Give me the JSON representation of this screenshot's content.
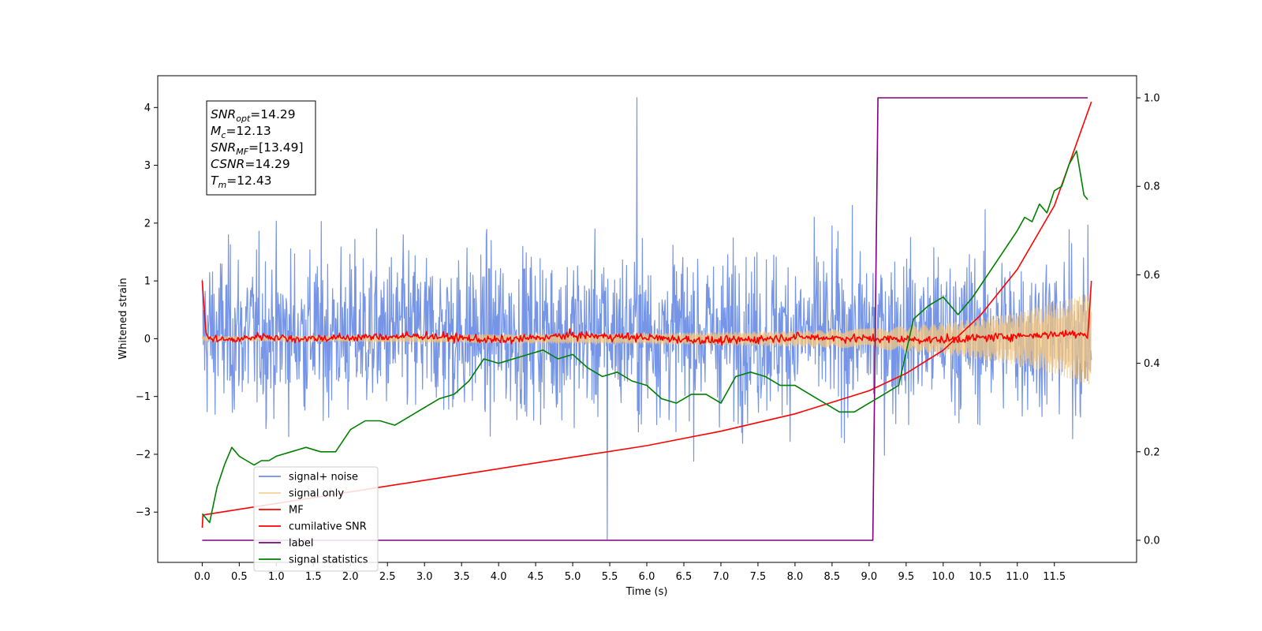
{
  "chart_data": {
    "type": "line",
    "xlabel": "Time (s)",
    "ylabel": "Whitened strain",
    "xlim": [
      -0.6,
      12.61
    ],
    "ylim": [
      -3.87,
      4.55
    ],
    "ylim_right": [
      -0.05,
      1.05
    ],
    "x_ticks": [
      0.0,
      0.5,
      1.0,
      1.5,
      2.0,
      2.5,
      3.0,
      3.5,
      4.0,
      4.5,
      5.0,
      5.5,
      6.0,
      6.5,
      7.0,
      7.5,
      8.0,
      8.5,
      9.0,
      9.5,
      10.0,
      10.5,
      11.0,
      11.5
    ],
    "x_tick_labels": [
      "0.0",
      "0.5",
      "1.0",
      "1.5",
      "2.0",
      "2.5",
      "3.0",
      "3.5",
      "4.0",
      "4.5",
      "5.0",
      "5.5",
      "6.0",
      "6.5",
      "7.0",
      "7.5",
      "8.0",
      "8.5",
      "9.0",
      "9.5",
      "10.0",
      "10.5",
      "11.0",
      "11.5"
    ],
    "y_ticks": [
      -3,
      -2,
      -1,
      0,
      1,
      2,
      3,
      4
    ],
    "y_tick_labels": [
      "−3",
      "−2",
      "−1",
      "0",
      "1",
      "2",
      "3",
      "4"
    ],
    "y_right_ticks": [
      0.0,
      0.2,
      0.4,
      0.6,
      0.8,
      1.0
    ],
    "y_right_tick_labels": [
      "0.0",
      "0.2",
      "0.4",
      "0.6",
      "0.8",
      "1.0"
    ],
    "annotation": [
      {
        "base": "SNR",
        "sub": "opt",
        "value": "=14.29"
      },
      {
        "base": "M",
        "sub": "c",
        "value": "=12.13"
      },
      {
        "base": "SNR",
        "sub": "MF",
        "value": "=[13.49]"
      },
      {
        "base": "CSNR",
        "sub": "",
        "value": "=14.29"
      },
      {
        "base": "T",
        "sub": "m",
        "value": "=12.43"
      }
    ],
    "legend_position": "lower-left",
    "series": [
      {
        "name": "signal+ noise",
        "color": "#6f8fe6",
        "axis": "left",
        "kind": "noise",
        "x_range": [
          0.0,
          12.0
        ],
        "band": [
          -1.7,
          1.9
        ],
        "max": 4.17,
        "min": -3.47
      },
      {
        "name": "signal only",
        "color": "#f5c77e",
        "axis": "left",
        "kind": "chirp",
        "x_range": [
          0.0,
          12.0
        ],
        "envelope": {
          "x": [
            0.0,
            2.0,
            4.0,
            6.0,
            8.0,
            9.0,
            10.0,
            11.0,
            11.5,
            12.0
          ],
          "y": [
            0.04,
            0.05,
            0.07,
            0.09,
            0.13,
            0.17,
            0.26,
            0.45,
            0.6,
            0.8
          ]
        }
      },
      {
        "name": "MF",
        "color": "#ff0000",
        "axis": "left",
        "kind": "mf",
        "x": [
          0.0,
          0.05,
          0.1,
          0.2,
          0.4,
          0.8,
          1.2,
          2.0,
          3.0,
          4.0,
          5.0,
          6.0,
          7.0,
          8.0,
          9.0,
          10.0,
          11.0,
          11.9,
          11.95,
          12.0
        ],
        "y": [
          1.0,
          0.1,
          -0.02,
          0.0,
          -0.03,
          0.05,
          0.0,
          0.02,
          0.05,
          -0.03,
          0.06,
          0.02,
          -0.04,
          0.03,
          0.0,
          -0.02,
          0.05,
          0.1,
          0.0,
          1.0
        ]
      },
      {
        "name": "cumilative SNR",
        "color": "#ff0000",
        "axis": "left",
        "x": [
          0.0,
          0.01,
          1.0,
          2.0,
          3.0,
          4.0,
          5.0,
          6.0,
          7.0,
          8.0,
          9.0,
          9.5,
          10.0,
          10.5,
          11.0,
          11.5,
          12.0
        ],
        "y": [
          -3.27,
          -3.05,
          -2.85,
          -2.65,
          -2.45,
          -2.25,
          -2.05,
          -1.85,
          -1.6,
          -1.3,
          -0.9,
          -0.6,
          -0.2,
          0.4,
          1.2,
          2.3,
          4.1
        ]
      },
      {
        "name": "label",
        "color": "#800080",
        "axis": "right",
        "x": [
          0.0,
          9.05,
          9.12,
          11.95
        ],
        "y": [
          0.0,
          0.0,
          1.0,
          1.0
        ]
      },
      {
        "name": "signal statistics",
        "color": "#008000",
        "axis": "right",
        "x": [
          0.0,
          0.1,
          0.2,
          0.3,
          0.4,
          0.5,
          0.6,
          0.7,
          0.8,
          0.9,
          1.0,
          1.2,
          1.4,
          1.6,
          1.8,
          2.0,
          2.2,
          2.4,
          2.6,
          2.8,
          3.0,
          3.2,
          3.4,
          3.6,
          3.8,
          4.0,
          4.2,
          4.4,
          4.6,
          4.8,
          5.0,
          5.2,
          5.4,
          5.6,
          5.8,
          6.0,
          6.2,
          6.4,
          6.6,
          6.8,
          7.0,
          7.2,
          7.4,
          7.6,
          7.8,
          8.0,
          8.2,
          8.4,
          8.6,
          8.8,
          9.0,
          9.2,
          9.4,
          9.6,
          9.8,
          10.0,
          10.2,
          10.4,
          10.6,
          10.8,
          11.0,
          11.1,
          11.2,
          11.3,
          11.4,
          11.5,
          11.6,
          11.7,
          11.8,
          11.9,
          11.95
        ],
        "y": [
          0.06,
          0.04,
          0.12,
          0.17,
          0.21,
          0.19,
          0.18,
          0.17,
          0.18,
          0.18,
          0.19,
          0.2,
          0.21,
          0.2,
          0.2,
          0.25,
          0.27,
          0.27,
          0.26,
          0.28,
          0.3,
          0.32,
          0.33,
          0.36,
          0.41,
          0.4,
          0.41,
          0.42,
          0.43,
          0.41,
          0.42,
          0.39,
          0.37,
          0.38,
          0.36,
          0.35,
          0.32,
          0.31,
          0.33,
          0.33,
          0.31,
          0.37,
          0.38,
          0.37,
          0.35,
          0.35,
          0.33,
          0.31,
          0.29,
          0.29,
          0.31,
          0.33,
          0.35,
          0.5,
          0.53,
          0.55,
          0.51,
          0.55,
          0.6,
          0.65,
          0.7,
          0.73,
          0.72,
          0.76,
          0.74,
          0.79,
          0.8,
          0.85,
          0.88,
          0.78,
          0.77
        ]
      }
    ]
  }
}
